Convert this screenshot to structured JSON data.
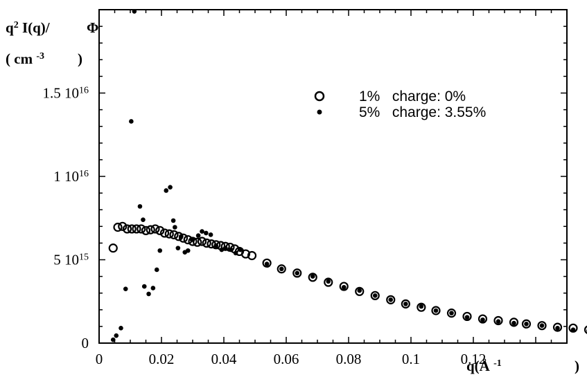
{
  "chart_data": {
    "type": "scatter",
    "title": "",
    "xlabel": "q(Å -1 )",
    "ylabel_line1": "q² I(q)/ Φ",
    "ylabel_line2": "( cm -3 )",
    "xlim": [
      0,
      0.15
    ],
    "ylim": [
      0,
      2e+16
    ],
    "x_ticks": [
      {
        "value": 0,
        "label": "0"
      },
      {
        "value": 0.02,
        "label": "0.02"
      },
      {
        "value": 0.04,
        "label": "0.04"
      },
      {
        "value": 0.06,
        "label": "0.06"
      },
      {
        "value": 0.08,
        "label": "0.08"
      },
      {
        "value": 0.1,
        "label": "0.1"
      },
      {
        "value": 0.12,
        "label": "0.12"
      }
    ],
    "y_ticks": [
      {
        "value": 0,
        "label": "0"
      },
      {
        "value": 5000000000000000.0,
        "mantissa": "5 10",
        "exp": "15"
      },
      {
        "value": 1e+16,
        "mantissa": "1 10",
        "exp": "16"
      },
      {
        "value": 1.5e+16,
        "mantissa": "1.5 10",
        "exp": "16"
      }
    ],
    "grid": false,
    "legend_position": "top-right",
    "series": [
      {
        "name": "1%   charge: 0%",
        "marker": "open-circle",
        "color": "#000000",
        "x": [
          0.0045,
          0.006,
          0.0075,
          0.009,
          0.0105,
          0.012,
          0.0135,
          0.015,
          0.0165,
          0.018,
          0.0195,
          0.021,
          0.0225,
          0.024,
          0.0255,
          0.027,
          0.0285,
          0.03,
          0.0315,
          0.033,
          0.0345,
          0.036,
          0.0375,
          0.039,
          0.0405,
          0.042,
          0.0435,
          0.045,
          0.047,
          0.049,
          0.0538,
          0.0585,
          0.0635,
          0.0685,
          0.0735,
          0.0785,
          0.0835,
          0.0885,
          0.0935,
          0.0983,
          0.1033,
          0.108,
          0.113,
          0.118,
          0.123,
          0.128,
          0.133,
          0.137,
          0.142,
          0.147,
          0.152,
          0.157
        ],
        "y": [
          5700000000000000.0,
          6950000000000000.0,
          7000000000000000.0,
          6850000000000000.0,
          6850000000000000.0,
          6850000000000000.0,
          6850000000000000.0,
          6750000000000000.0,
          6800000000000000.0,
          6850000000000000.0,
          6750000000000000.0,
          6600000000000000.0,
          6550000000000000.0,
          6500000000000000.0,
          6400000000000000.0,
          6300000000000000.0,
          6200000000000000.0,
          6100000000000000.0,
          6050000000000000.0,
          6100000000000000.0,
          6000000000000000.0,
          5950000000000000.0,
          5900000000000000.0,
          5850000000000000.0,
          5800000000000000.0,
          5750000000000000.0,
          5650000000000000.0,
          5500000000000000.0,
          5350000000000000.0,
          5250000000000000.0,
          4800000000000000.0,
          4450000000000000.0,
          4200000000000000.0,
          3950000000000000.0,
          3650000000000000.0,
          3400000000000000.0,
          3100000000000000.0,
          2850000000000000.0,
          2600000000000000.0,
          2350000000000000.0,
          2150000000000000.0,
          1950000000000000.0,
          1800000000000000.0,
          1600000000000000.0,
          1450000000000000.0,
          1350000000000000.0,
          1250000000000000.0,
          1150000000000000.0,
          1050000000000000.0,
          950000000000000.0,
          900000000000000.0,
          800000000000000.0
        ]
      },
      {
        "name": "5%   charge: 3.55%",
        "marker": "filled-dot",
        "color": "#000000",
        "x": [
          0.0045,
          0.0055,
          0.007,
          0.0085,
          0.0103,
          0.0113,
          0.0131,
          0.0141,
          0.0145,
          0.0159,
          0.0173,
          0.0185,
          0.0195,
          0.0215,
          0.0228,
          0.0238,
          0.0243,
          0.0253,
          0.0263,
          0.0275,
          0.0285,
          0.0298,
          0.0318,
          0.033,
          0.0343,
          0.0358,
          0.0375,
          0.0393,
          0.0405,
          0.0423,
          0.0438,
          0.0453,
          0.0538,
          0.0585,
          0.0635,
          0.0685,
          0.0735,
          0.0785,
          0.0835,
          0.0885,
          0.0935,
          0.0983,
          0.1033,
          0.108,
          0.113,
          0.118,
          0.123,
          0.128,
          0.133,
          0.137,
          0.142,
          0.147,
          0.152,
          0.157
        ],
        "y": [
          200000000000000.0,
          450000000000000.0,
          900000000000000.0,
          3250000000000000.0,
          1.33e+16,
          1.99e+16,
          8200000000000000.0,
          7400000000000000.0,
          3400000000000000.0,
          2950000000000000.0,
          3300000000000000.0,
          4400000000000000.0,
          5550000000000000.0,
          9150000000000000.0,
          9350000000000000.0,
          7350000000000000.0,
          6950000000000000.0,
          5700000000000000.0,
          6400000000000000.0,
          5450000000000000.0,
          5550000000000000.0,
          6200000000000000.0,
          6450000000000000.0,
          6700000000000000.0,
          6600000000000000.0,
          6500000000000000.0,
          5850000000000000.0,
          5600000000000000.0,
          5700000000000000.0,
          5600000000000000.0,
          5400000000000000.0,
          5600000000000000.0,
          4750000000000000.0,
          4450000000000000.0,
          4200000000000000.0,
          4000000000000000.0,
          3700000000000000.0,
          3350000000000000.0,
          3150000000000000.0,
          2850000000000000.0,
          2600000000000000.0,
          2350000000000000.0,
          2200000000000000.0,
          1950000000000000.0,
          1800000000000000.0,
          1550000000000000.0,
          1400000000000000.0,
          1300000000000000.0,
          1200000000000000.0,
          1150000000000000.0,
          1050000000000000.0,
          900000000000000.0,
          800000000000000.0,
          750000000000000.0
        ]
      }
    ]
  }
}
